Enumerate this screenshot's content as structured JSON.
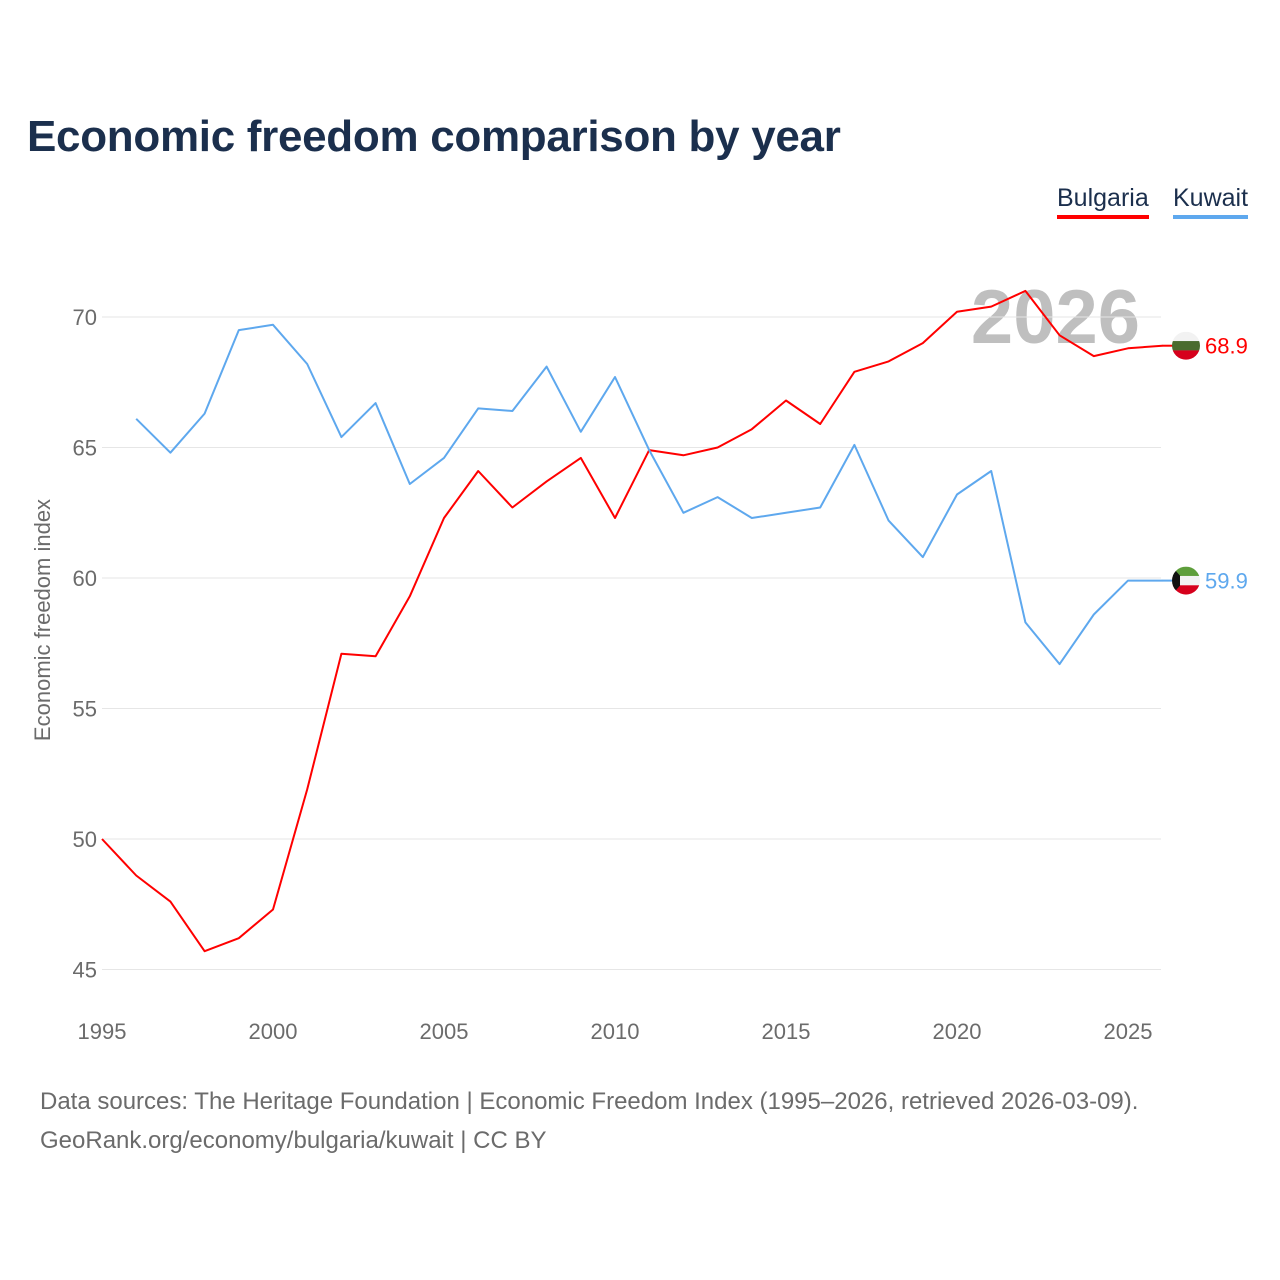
{
  "title": "Economic freedom comparison by year",
  "footer": {
    "line1": "Data sources: The Heritage Foundation | Economic Freedom Index (1995–2026, retrieved 2026-03-09).",
    "line2": "GeoRank.org/economy/bulgaria/kuwait | CC BY"
  },
  "chart_data": {
    "type": "line",
    "title": "Economic freedom comparison by year",
    "xlabel": "",
    "ylabel": "Economic freedom index",
    "year_watermark": "2026",
    "xlim": [
      1995,
      2026
    ],
    "ylim": [
      45,
      72
    ],
    "xticks": [
      "1995",
      "2000",
      "2005",
      "2010",
      "2015",
      "2020",
      "2025"
    ],
    "yticks": [
      "45",
      "50",
      "55",
      "60",
      "65",
      "70"
    ],
    "grid": true,
    "legend": "top-right",
    "series": [
      {
        "name": "Bulgaria",
        "color": "#ff0000",
        "end_label": "68.9",
        "flag": "bulgaria-flag",
        "x": [
          1995,
          1996,
          1997,
          1998,
          1999,
          2000,
          2001,
          2002,
          2003,
          2004,
          2005,
          2006,
          2007,
          2008,
          2009,
          2010,
          2011,
          2012,
          2013,
          2014,
          2015,
          2016,
          2017,
          2018,
          2019,
          2020,
          2021,
          2022,
          2023,
          2024,
          2025,
          2026
        ],
        "values": [
          50.0,
          48.6,
          47.6,
          45.7,
          46.2,
          47.3,
          51.9,
          57.1,
          57.0,
          59.3,
          62.3,
          64.1,
          62.7,
          63.7,
          64.6,
          62.3,
          64.9,
          64.7,
          65.0,
          65.7,
          66.8,
          65.9,
          67.9,
          68.3,
          69.0,
          70.2,
          70.4,
          71.0,
          69.3,
          68.5,
          68.8,
          68.9
        ]
      },
      {
        "name": "Kuwait",
        "color": "#5ea8ee",
        "end_label": "59.9",
        "flag": "kuwait-flag",
        "x": [
          1996,
          1997,
          1998,
          1999,
          2000,
          2001,
          2002,
          2003,
          2004,
          2005,
          2006,
          2007,
          2008,
          2009,
          2010,
          2011,
          2012,
          2013,
          2014,
          2015,
          2016,
          2017,
          2018,
          2019,
          2020,
          2021,
          2022,
          2023,
          2024,
          2025,
          2026
        ],
        "values": [
          66.1,
          64.8,
          66.3,
          69.5,
          69.7,
          68.2,
          65.4,
          66.7,
          63.6,
          64.6,
          66.5,
          66.4,
          68.1,
          65.6,
          67.7,
          64.9,
          62.5,
          63.1,
          62.3,
          62.5,
          62.7,
          65.1,
          62.2,
          60.8,
          63.2,
          64.1,
          58.3,
          56.7,
          58.6,
          59.9,
          59.9
        ]
      }
    ]
  }
}
